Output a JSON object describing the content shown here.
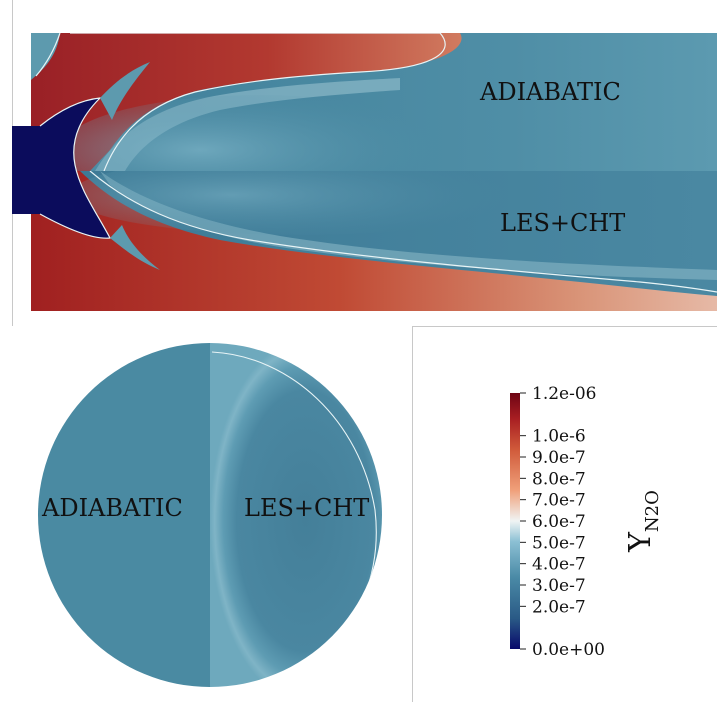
{
  "top_panel": {
    "label_upper": "ADIABATIC",
    "label_lower": "LES+CHT"
  },
  "bottom_panel": {
    "label_left": "ADIABATIC",
    "label_right": "LES+CHT"
  },
  "colorbar": {
    "title_main": "Y",
    "title_sub": "N2O",
    "ticks": [
      "1.2e-06",
      "1.0e-6",
      "9.0e-7",
      "8.0e-7",
      "7.0e-7",
      "6.0e-7",
      "5.0e-7",
      "4.0e-7",
      "3.0e-7",
      "2.0e-7",
      "0.0e+00"
    ],
    "tick_values": [
      1.2e-06,
      1e-06,
      9e-07,
      8e-07,
      7e-07,
      6e-07,
      5e-07,
      4e-07,
      3e-07,
      2e-07,
      0.0
    ],
    "min": 0.0,
    "max": 1.2e-06,
    "colors": [
      "#08086b",
      "#2a5a86",
      "#4a8aa6",
      "#8cc0d4",
      "#f0f4f4",
      "#f0a07a",
      "#d05a3a",
      "#a81e22",
      "#6e0414"
    ]
  }
}
